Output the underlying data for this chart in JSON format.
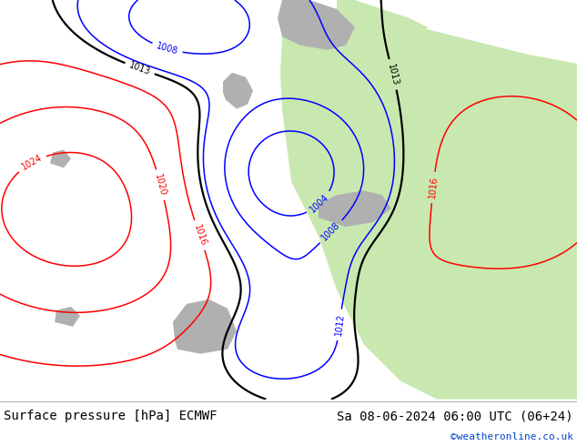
{
  "title_left": "Surface pressure [hPa] ECMWF",
  "title_right": "Sa 08-06-2024 06:00 UTC (06+24)",
  "credit": "©weatheronline.co.uk",
  "font_size_title": 10,
  "font_size_credit": 8,
  "figsize": [
    6.34,
    4.9
  ],
  "dpi": 100,
  "bg_light_gray": "#e0e0e0",
  "land_green": "#c8e8b0",
  "land_gray": "#b0b0b0",
  "label_fontsize": 7
}
